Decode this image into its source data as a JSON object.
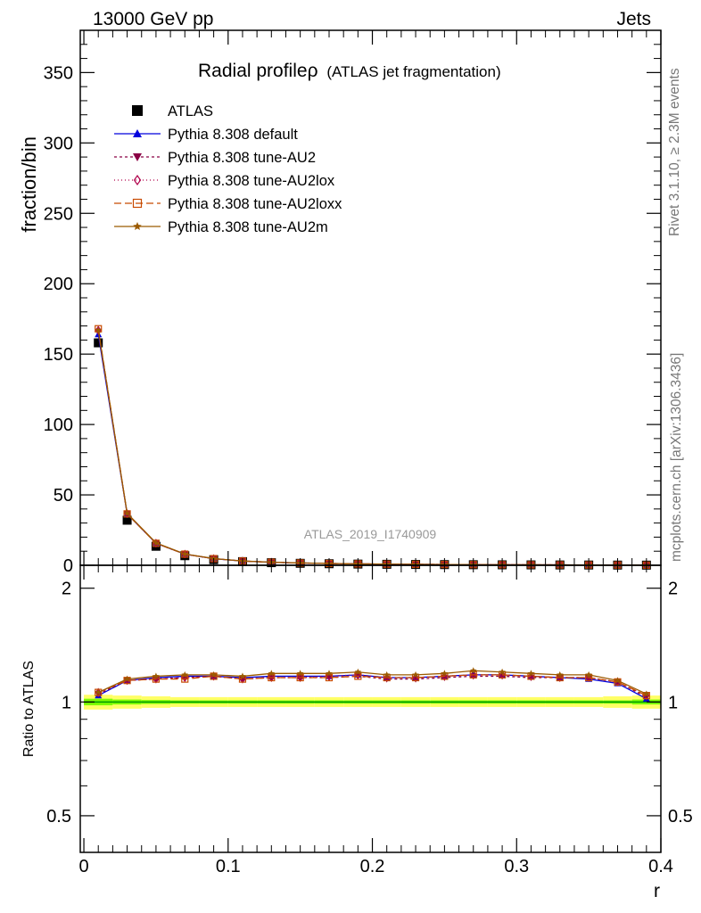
{
  "header": {
    "energy_label": "13000 GeV pp",
    "process_label": "Jets"
  },
  "side_labels": {
    "rivet": "Rivet 3.1.10, ≥ 2.3M events",
    "mcplots": "mcplots.cern.ch [arXiv:1306.3436]"
  },
  "chart_data": [
    {
      "type": "line",
      "title": "Radial profileρ",
      "subtitle": "(ATLAS jet fragmentation)",
      "watermark": "ATLAS_2019_I1740909",
      "xlabel": "",
      "ylabel": "fraction/bin",
      "xlim": [
        -0.0025,
        0.4
      ],
      "ylim": [
        0,
        380
      ],
      "x_ticks": [
        0,
        0.1,
        0.2,
        0.3,
        0.4
      ],
      "x_tick_labels": [
        "0",
        "0.1",
        "0.2",
        "0.3",
        "0.4"
      ],
      "y_ticks": [
        0,
        50,
        100,
        150,
        200,
        250,
        300,
        350
      ],
      "y_tick_labels": [
        "0",
        "50",
        "100",
        "150",
        "200",
        "250",
        "300",
        "350"
      ],
      "legend_position": "top-left",
      "x": [
        0.01,
        0.03,
        0.05,
        0.07,
        0.09,
        0.11,
        0.13,
        0.15,
        0.17,
        0.19,
        0.21,
        0.23,
        0.25,
        0.27,
        0.29,
        0.31,
        0.33,
        0.35,
        0.37,
        0.39
      ],
      "series": [
        {
          "name": "ATLAS",
          "color": "#000000",
          "marker": "square",
          "dash": "none",
          "values": [
            158,
            32,
            13.5,
            6.8,
            4.0,
            2.6,
            1.85,
            1.4,
            1.1,
            0.85,
            0.7,
            0.58,
            0.48,
            0.4,
            0.33,
            0.28,
            0.23,
            0.19,
            0.15,
            0.11
          ]
        },
        {
          "name": "Pythia 8.308 default",
          "color": "#0000dd",
          "marker": "triangle-up",
          "dash": "none",
          "values": [
            164,
            36.5,
            15.6,
            7.9,
            4.7,
            3.0,
            2.15,
            1.63,
            1.28,
            1.0,
            0.81,
            0.67,
            0.56,
            0.47,
            0.39,
            0.33,
            0.27,
            0.22,
            0.17,
            0.11
          ]
        },
        {
          "name": "Pythia 8.308 tune-AU2",
          "color": "#8b0045",
          "marker": "triangle-down",
          "dash": "3,3",
          "values": [
            166,
            36.6,
            15.6,
            7.9,
            4.7,
            3.0,
            2.15,
            1.62,
            1.28,
            1.0,
            0.81,
            0.67,
            0.56,
            0.47,
            0.39,
            0.33,
            0.27,
            0.22,
            0.17,
            0.11
          ]
        },
        {
          "name": "Pythia 8.308 tune-AU2lox",
          "color": "#b0004a",
          "marker": "diamond-open",
          "dash": "1,3",
          "values": [
            167,
            36.7,
            15.7,
            7.9,
            4.7,
            3.0,
            2.16,
            1.62,
            1.28,
            1.0,
            0.82,
            0.67,
            0.56,
            0.47,
            0.39,
            0.33,
            0.27,
            0.22,
            0.17,
            0.11
          ]
        },
        {
          "name": "Pythia 8.308 tune-AU2loxx",
          "color": "#c84a00",
          "marker": "square-open",
          "dash": "8,4",
          "values": [
            168,
            36.5,
            15.6,
            7.9,
            4.7,
            3.0,
            2.14,
            1.62,
            1.28,
            1.0,
            0.81,
            0.67,
            0.56,
            0.47,
            0.39,
            0.33,
            0.27,
            0.22,
            0.17,
            0.11
          ]
        },
        {
          "name": "Pythia 8.308 tune-AU2m",
          "color": "#9b5a00",
          "marker": "star",
          "dash": "none",
          "values": [
            167,
            36.9,
            15.9,
            8.0,
            4.8,
            3.05,
            2.2,
            1.66,
            1.31,
            1.03,
            0.83,
            0.69,
            0.57,
            0.48,
            0.4,
            0.34,
            0.28,
            0.23,
            0.17,
            0.12
          ]
        }
      ]
    },
    {
      "type": "line",
      "title": "",
      "xlabel": "r",
      "ylabel": "Ratio to ATLAS",
      "xlim": [
        -0.0025,
        0.4
      ],
      "ylim": [
        0.4,
        2.3
      ],
      "y_ticks": [
        0.5,
        1,
        2
      ],
      "y_tick_labels": [
        "0.5",
        "1",
        "2"
      ],
      "band_colors": {
        "inner": "#7cfc00",
        "outer": "#ffff66",
        "reference_line": "#009900"
      },
      "band_halfwidth": {
        "inner": [
          0.02,
          0.015,
          0.012,
          0.01,
          0.01,
          0.01,
          0.01,
          0.01,
          0.01,
          0.01,
          0.01,
          0.01,
          0.01,
          0.01,
          0.01,
          0.01,
          0.01,
          0.01,
          0.01,
          0.015
        ],
        "outer": [
          0.045,
          0.04,
          0.035,
          0.03,
          0.03,
          0.03,
          0.03,
          0.03,
          0.03,
          0.03,
          0.03,
          0.03,
          0.03,
          0.03,
          0.03,
          0.03,
          0.03,
          0.03,
          0.035,
          0.04
        ]
      },
      "x": [
        0.01,
        0.03,
        0.05,
        0.07,
        0.09,
        0.11,
        0.13,
        0.15,
        0.17,
        0.19,
        0.21,
        0.23,
        0.25,
        0.27,
        0.29,
        0.31,
        0.33,
        0.35,
        0.37,
        0.39
      ],
      "series": [
        {
          "name": "Pythia 8.308 default",
          "color": "#0000dd",
          "marker": "triangle-up",
          "dash": "none",
          "values": [
            1.04,
            1.14,
            1.16,
            1.17,
            1.17,
            1.16,
            1.17,
            1.17,
            1.17,
            1.18,
            1.16,
            1.16,
            1.17,
            1.18,
            1.18,
            1.17,
            1.16,
            1.15,
            1.12,
            1.02
          ]
        },
        {
          "name": "Pythia 8.308 tune-AU2",
          "color": "#8b0045",
          "marker": "triangle-down",
          "dash": "3,3",
          "values": [
            1.05,
            1.14,
            1.15,
            1.16,
            1.17,
            1.15,
            1.16,
            1.16,
            1.16,
            1.17,
            1.15,
            1.15,
            1.16,
            1.17,
            1.17,
            1.16,
            1.16,
            1.16,
            1.13,
            1.03
          ]
        },
        {
          "name": "Pythia 8.308 tune-AU2lox",
          "color": "#b0004a",
          "marker": "diamond-open",
          "dash": "1,3",
          "values": [
            1.06,
            1.14,
            1.15,
            1.16,
            1.17,
            1.15,
            1.16,
            1.16,
            1.17,
            1.18,
            1.16,
            1.16,
            1.17,
            1.18,
            1.18,
            1.17,
            1.16,
            1.16,
            1.13,
            1.04
          ]
        },
        {
          "name": "Pythia 8.308 tune-AU2loxx",
          "color": "#c84a00",
          "marker": "square-open",
          "dash": "8,4",
          "values": [
            1.06,
            1.14,
            1.15,
            1.15,
            1.17,
            1.15,
            1.16,
            1.16,
            1.16,
            1.17,
            1.16,
            1.16,
            1.17,
            1.18,
            1.18,
            1.17,
            1.16,
            1.16,
            1.13,
            1.04
          ]
        },
        {
          "name": "Pythia 8.308 tune-AU2m",
          "color": "#9b5a00",
          "marker": "star",
          "dash": "none",
          "values": [
            1.06,
            1.15,
            1.17,
            1.18,
            1.18,
            1.17,
            1.19,
            1.19,
            1.19,
            1.2,
            1.18,
            1.18,
            1.19,
            1.21,
            1.2,
            1.19,
            1.18,
            1.18,
            1.14,
            1.05
          ]
        }
      ]
    }
  ]
}
